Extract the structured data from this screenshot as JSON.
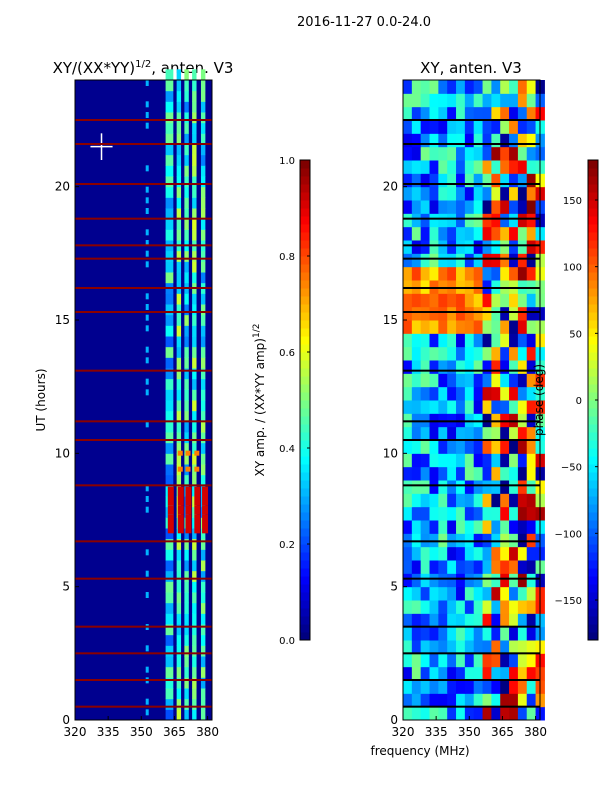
{
  "suptitle": "2016-11-27 0.0-24.0",
  "xlabel": "frequency (MHz)",
  "chart_data": [
    {
      "type": "heatmap",
      "title_main": "XY/(XX*YY)",
      "title_sup": "1/2",
      "title_tail": ", anten. V3",
      "xlim": [
        320,
        382
      ],
      "ylim": [
        0,
        24
      ],
      "xticks": [
        "320",
        "335",
        "350",
        "365",
        "380"
      ],
      "xtick_values": [
        320,
        335,
        350,
        365,
        380
      ],
      "yticks": [
        "0",
        "5",
        "10",
        "15",
        "20"
      ],
      "ytick_values": [
        0,
        5,
        10,
        15,
        20
      ],
      "ylabel": "UT (hours)",
      "colorbar": {
        "label_main": "XY amp. / (XX*YY amp)",
        "label_sup": "1/2",
        "range": [
          0.0,
          1.0
        ],
        "ticks": [
          "0.0",
          "0.2",
          "0.4",
          "0.6",
          "0.8",
          "1.0"
        ],
        "tick_values": [
          0.0,
          0.2,
          0.4,
          0.6,
          0.8,
          1.0
        ]
      },
      "colormap": "jet",
      "flagged_hours": [
        0.5,
        1.5,
        2.5,
        3.5,
        5.3,
        6.7,
        8.8,
        10.5,
        11.2,
        13.1,
        15.3,
        16.2,
        17.3,
        17.8,
        18.8,
        20.1,
        21.6,
        22.5
      ]
    },
    {
      "type": "heatmap",
      "title": "XY, anten. V3",
      "xlim": [
        320,
        382
      ],
      "ylim": [
        0,
        24
      ],
      "xticks": [
        "320",
        "335",
        "350",
        "365",
        "380"
      ],
      "xtick_values": [
        320,
        335,
        350,
        365,
        380
      ],
      "yticks": [
        "0",
        "5",
        "10",
        "15",
        "20"
      ],
      "ytick_values": [
        0,
        5,
        10,
        15,
        20
      ],
      "colorbar": {
        "label": "phase (deg)",
        "range": [
          -180,
          180
        ],
        "ticks": [
          "−150",
          "−100",
          "−50",
          "0",
          "50",
          "100",
          "150"
        ],
        "tick_values": [
          -150,
          -100,
          -50,
          0,
          50,
          100,
          150
        ]
      },
      "colormap": "jet",
      "flagged_hours": [
        0.5,
        1.5,
        2.5,
        3.5,
        5.3,
        6.7,
        8.8,
        10.5,
        11.2,
        13.1,
        15.3,
        16.2,
        17.3,
        17.8,
        18.8,
        20.1,
        21.6,
        22.5
      ]
    }
  ]
}
